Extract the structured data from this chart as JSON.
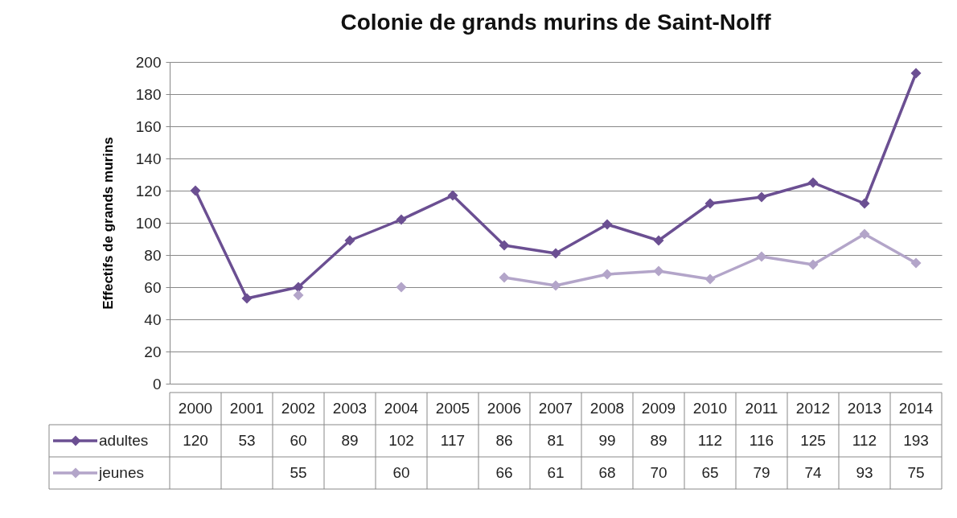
{
  "chart_data": {
    "type": "line",
    "title": "Colonie de grands murins de Saint-Nolff",
    "ylabel": "Effectifs de grands murins",
    "categories": [
      "2000",
      "2001",
      "2002",
      "2003",
      "2004",
      "2005",
      "2006",
      "2007",
      "2008",
      "2009",
      "2010",
      "2011",
      "2012",
      "2013",
      "2014"
    ],
    "series": [
      {
        "name": "adultes",
        "color": "#6b4f92",
        "values": [
          120,
          53,
          60,
          89,
          102,
          117,
          86,
          81,
          99,
          89,
          112,
          116,
          125,
          112,
          193
        ]
      },
      {
        "name": "jeunes",
        "color": "#b3a5c9",
        "values": [
          null,
          null,
          55,
          null,
          60,
          null,
          66,
          61,
          68,
          70,
          65,
          79,
          74,
          93,
          75
        ]
      }
    ],
    "ylim": [
      0,
      200
    ],
    "yticks": [
      0,
      20,
      40,
      60,
      80,
      100,
      120,
      140,
      160,
      180,
      200
    ],
    "grid": "y",
    "legend": "bottom",
    "marker": "diamond",
    "line_style": "solid",
    "data_labels": true
  }
}
